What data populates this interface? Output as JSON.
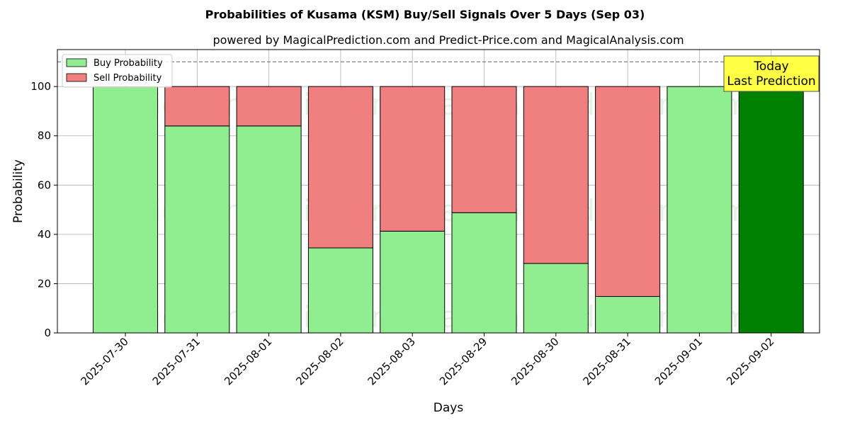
{
  "chart_data": {
    "type": "bar",
    "stacked": true,
    "title": "Probabilities of Kusama (KSM) Buy/Sell Signals Over 5 Days (Sep 03)",
    "subtitle": "powered by MagicalPrediction.com and Predict-Price.com and MagicalAnalysis.com",
    "xlabel": "Days",
    "ylabel": "Probability",
    "ylim": [
      0,
      115
    ],
    "yticks": [
      0,
      20,
      40,
      60,
      80,
      100
    ],
    "grid": true,
    "legend_position": "top-left",
    "categories": [
      "2025-07-30",
      "2025-07-31",
      "2025-08-01",
      "2025-08-02",
      "2025-08-03",
      "2025-08-29",
      "2025-08-30",
      "2025-08-31",
      "2025-09-01",
      "2025-09-02"
    ],
    "series": [
      {
        "name": "Buy Probability",
        "color": "#90ee90",
        "values": [
          100,
          84,
          84,
          34.5,
          41.3,
          48.8,
          28.2,
          14.8,
          100,
          100
        ]
      },
      {
        "name": "Sell Probability",
        "color": "#f08080",
        "values": [
          0,
          16,
          16,
          65.5,
          58.7,
          51.2,
          71.8,
          85.2,
          0,
          0
        ]
      }
    ],
    "highlight": {
      "index": 9,
      "color": "#008000"
    },
    "reference_line": {
      "y": 110,
      "style": "dashed",
      "color": "#808080"
    },
    "annotation": {
      "lines": [
        "Today",
        "Last Prediction"
      ],
      "background": "#ffff44"
    },
    "watermarks": [
      "MagicalAnalysis.com",
      "MagicalPrediction.com"
    ]
  }
}
